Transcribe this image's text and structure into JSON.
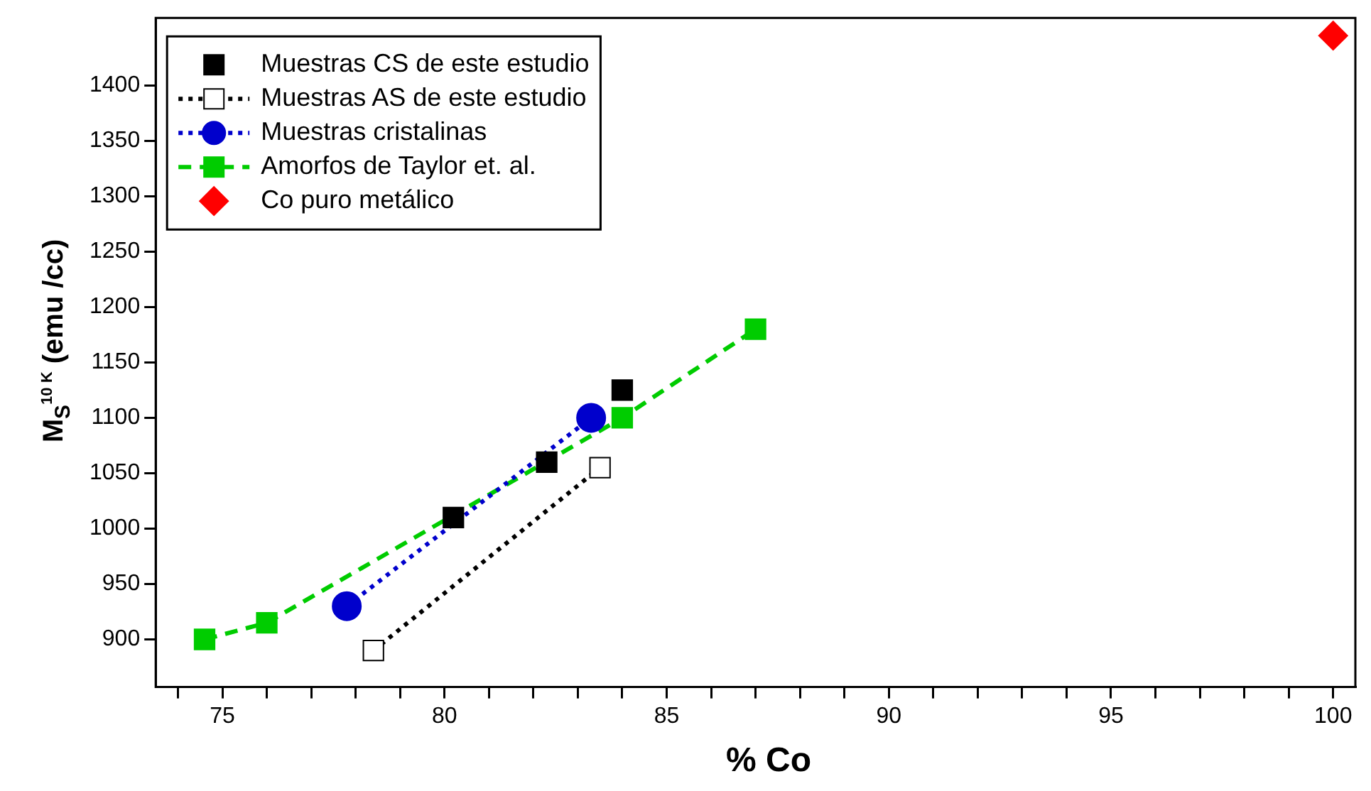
{
  "chart_data": {
    "type": "scatter",
    "xlabel": "% Co",
    "ylabel": "M$_{S}$$^{10 K}$ (emu /cc)",
    "xlim": [
      73.5,
      100.5
    ],
    "ylim": [
      857,
      1461
    ],
    "xticks": [
      {
        "value": 74,
        "label": null
      },
      75,
      {
        "value": 76,
        "label": null
      },
      {
        "value": 77,
        "label": null
      },
      {
        "value": 78,
        "label": null
      },
      {
        "value": 79,
        "label": null
      },
      80,
      {
        "value": 81,
        "label": null
      },
      {
        "value": 82,
        "label": null
      },
      {
        "value": 83,
        "label": null
      },
      {
        "value": 84,
        "label": null
      },
      85,
      {
        "value": 86,
        "label": null
      },
      {
        "value": 87,
        "label": null
      },
      {
        "value": 88,
        "label": null
      },
      {
        "value": 89,
        "label": null
      },
      90,
      {
        "value": 91,
        "label": null
      },
      {
        "value": 92,
        "label": null
      },
      {
        "value": 93,
        "label": null
      },
      {
        "value": 94,
        "label": null
      },
      95,
      {
        "value": 96,
        "label": null
      },
      {
        "value": 97,
        "label": null
      },
      {
        "value": 98,
        "label": null
      },
      {
        "value": 99,
        "label": null
      },
      100
    ],
    "yticks": [
      900,
      950,
      1000,
      1050,
      1100,
      1150,
      1200,
      1250,
      1300,
      1350,
      1400
    ],
    "legend": "top left",
    "series": [
      {
        "name": "Muestras CS de este estudio",
        "type": "scatter",
        "color": "#000000",
        "marker": "square",
        "x": [
          80.2,
          82.3,
          84.0
        ],
        "values": [
          1010,
          1060,
          1125
        ]
      },
      {
        "name": "Muestras AS de este estudio",
        "type": "line",
        "color": "#000000",
        "marker": "square",
        "colors": [
          "#ffffff",
          "#ffffff"
        ],
        "line_style": "dotted",
        "x": [
          78.4,
          83.5
        ],
        "values": [
          890,
          1055
        ]
      },
      {
        "name": "Muestras cristalinas",
        "type": "line",
        "color": "#0000cc",
        "marker": "circle",
        "line_style": "dotted",
        "x": [
          77.8,
          83.3
        ],
        "values": [
          930,
          1100
        ]
      },
      {
        "name": "Amorfos de Taylor et. al.",
        "type": "line",
        "color": "#00cc00",
        "marker": "square",
        "line_style": "dashed",
        "x": [
          74.6,
          76.0,
          84.0,
          87.0
        ],
        "values": [
          900,
          915,
          1100,
          1180
        ]
      },
      {
        "name": "Co puro metálico",
        "type": "scatter",
        "color": "#ff0000",
        "marker": "diamond",
        "x": [
          100
        ],
        "values": [
          1445
        ]
      }
    ]
  }
}
